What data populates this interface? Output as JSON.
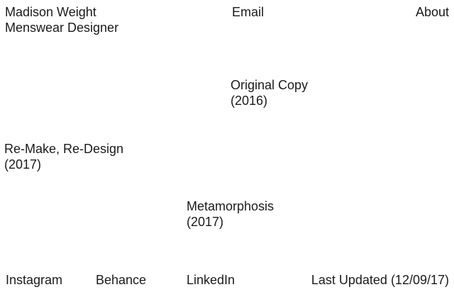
{
  "header": {
    "name": "Madison Weight",
    "role": "Menswear Designer",
    "nav": {
      "email": "Email",
      "about": "About"
    }
  },
  "projects": [
    {
      "title": "Original Copy",
      "year": "(2016)"
    },
    {
      "title": "Re-Make, Re-Design",
      "year": "(2017)"
    },
    {
      "title": "Metamorphosis",
      "year": "(2017)"
    }
  ],
  "footer": {
    "instagram": "Instagram",
    "behance": "Behance",
    "linkedin": "LinkedIn",
    "last_updated": "Last Updated (12/09/17)"
  },
  "colors": {
    "text": "#1a1a1a",
    "background": "#ffffff"
  }
}
